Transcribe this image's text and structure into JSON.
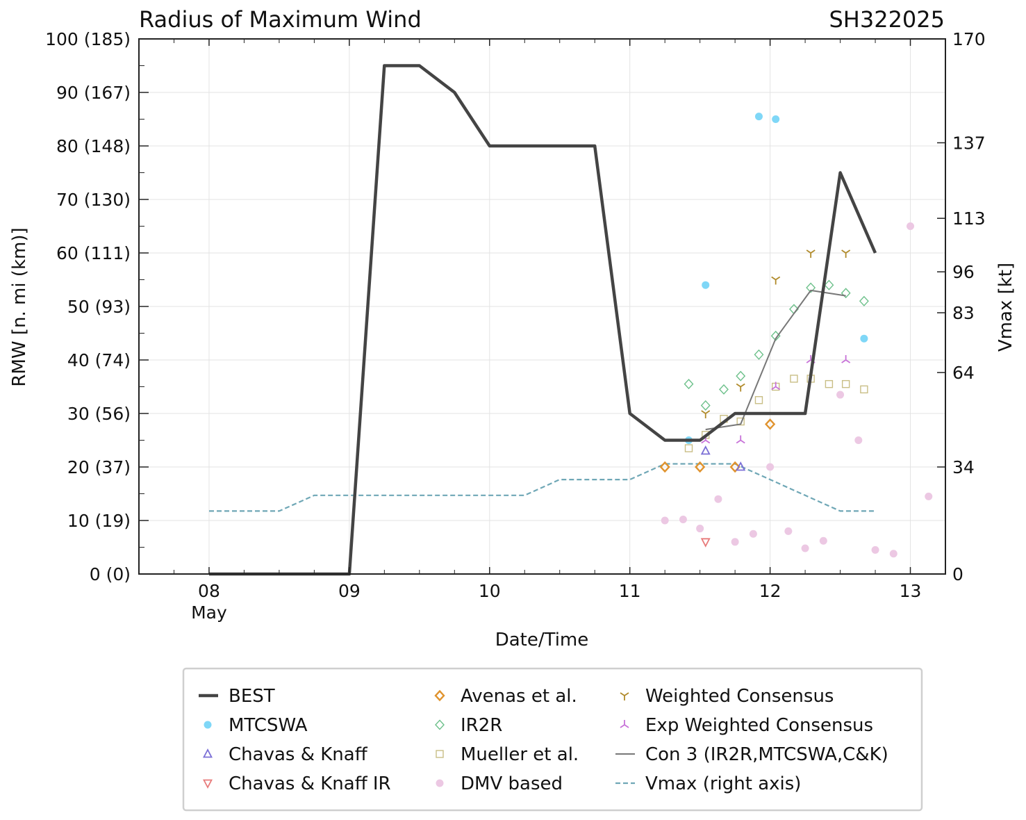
{
  "chart_data": {
    "type": "line",
    "title": "Radius of Maximum Wind",
    "storm_id": "SH322025",
    "xlabel": "Date/Time",
    "ylabel": "RMW [n. mi (km)]",
    "ylabel_right": "Vmax [kt]",
    "xlim": [
      7.5,
      13.25
    ],
    "ylim": [
      0,
      100
    ],
    "y_right_lim": [
      0,
      170
    ],
    "x_ticks": [
      {
        "value": 8,
        "label": "08",
        "sub": "May"
      },
      {
        "value": 9,
        "label": "09",
        "sub": ""
      },
      {
        "value": 10,
        "label": "10",
        "sub": ""
      },
      {
        "value": 11,
        "label": "11",
        "sub": ""
      },
      {
        "value": 12,
        "label": "12",
        "sub": ""
      },
      {
        "value": 13,
        "label": "13",
        "sub": ""
      }
    ],
    "y_ticks": [
      {
        "value": 0,
        "label": "0 (0)"
      },
      {
        "value": 10,
        "label": "10 (19)"
      },
      {
        "value": 20,
        "label": "20 (37)"
      },
      {
        "value": 30,
        "label": "30 (56)"
      },
      {
        "value": 40,
        "label": "40 (74)"
      },
      {
        "value": 50,
        "label": "50 (93)"
      },
      {
        "value": 60,
        "label": "60 (111)"
      },
      {
        "value": 70,
        "label": "70 (130)"
      },
      {
        "value": 80,
        "label": "80 (148)"
      },
      {
        "value": 90,
        "label": "90 (167)"
      },
      {
        "value": 100,
        "label": "100 (185)"
      }
    ],
    "y_right_ticks": [
      {
        "value": 0,
        "label": "0"
      },
      {
        "value": 34,
        "label": "34"
      },
      {
        "value": 64,
        "label": "64"
      },
      {
        "value": 83,
        "label": "83"
      },
      {
        "value": 96,
        "label": "96"
      },
      {
        "value": 113,
        "label": "113"
      },
      {
        "value": 137,
        "label": "137"
      },
      {
        "value": 170,
        "label": "170"
      }
    ],
    "series": [
      {
        "name": "BEST",
        "marker": "line",
        "color": "#444444",
        "axis": "left",
        "points": [
          [
            8.0,
            0
          ],
          [
            9.0,
            0
          ],
          [
            9.25,
            95
          ],
          [
            9.5,
            95
          ],
          [
            9.75,
            90
          ],
          [
            10.0,
            80
          ],
          [
            10.25,
            80
          ],
          [
            10.5,
            80
          ],
          [
            10.75,
            80
          ],
          [
            11.0,
            30
          ],
          [
            11.25,
            25
          ],
          [
            11.5,
            25
          ],
          [
            11.75,
            30
          ],
          [
            12.0,
            30
          ],
          [
            12.25,
            30
          ],
          [
            12.5,
            75
          ],
          [
            12.75,
            60
          ]
        ]
      },
      {
        "name": "MTCSWA",
        "marker": "circle",
        "color": "#7fd7f7",
        "axis": "left",
        "points": [
          [
            11.42,
            25
          ],
          [
            11.54,
            54
          ],
          [
            11.92,
            85.5
          ],
          [
            12.04,
            85
          ],
          [
            12.67,
            44
          ]
        ]
      },
      {
        "name": "Chavas & Knaff",
        "marker": "triangle-up",
        "color": "#7b6fd6",
        "axis": "left",
        "points": [
          [
            11.54,
            23
          ],
          [
            11.79,
            20
          ]
        ]
      },
      {
        "name": "Chavas & Knaff IR",
        "marker": "triangle-down",
        "color": "#e87b7b",
        "axis": "left",
        "points": [
          [
            11.54,
            6
          ]
        ]
      },
      {
        "name": "Avenas et al.",
        "marker": "diamond",
        "color": "#e0932e",
        "axis": "left",
        "points": [
          [
            11.25,
            20
          ],
          [
            11.5,
            20
          ],
          [
            11.75,
            20
          ],
          [
            12.0,
            28
          ]
        ]
      },
      {
        "name": "IR2R",
        "marker": "diamond-open",
        "color": "#6cc08a",
        "axis": "left",
        "points": [
          [
            11.42,
            35.5
          ],
          [
            11.54,
            31.5
          ],
          [
            11.67,
            34.5
          ],
          [
            11.79,
            37
          ],
          [
            11.92,
            41
          ],
          [
            12.04,
            44.5
          ],
          [
            12.17,
            49.5
          ],
          [
            12.29,
            53.5
          ],
          [
            12.42,
            54
          ],
          [
            12.54,
            52.5
          ],
          [
            12.67,
            51
          ]
        ]
      },
      {
        "name": "Mueller et al.",
        "marker": "square",
        "color": "#c9be85",
        "axis": "left",
        "points": [
          [
            11.42,
            23.5
          ],
          [
            11.54,
            26
          ],
          [
            11.67,
            29
          ],
          [
            11.79,
            28.5
          ],
          [
            11.92,
            32.5
          ],
          [
            12.04,
            35
          ],
          [
            12.17,
            36.5
          ],
          [
            12.29,
            36.5
          ],
          [
            12.42,
            35.5
          ],
          [
            12.54,
            35.5
          ],
          [
            12.67,
            34.5
          ]
        ]
      },
      {
        "name": "DMV based",
        "marker": "circle",
        "color": "#ecc8e3",
        "axis": "left",
        "points": [
          [
            11.25,
            10
          ],
          [
            11.38,
            10.2
          ],
          [
            11.5,
            8.5
          ],
          [
            11.63,
            14
          ],
          [
            11.75,
            6
          ],
          [
            11.88,
            7.5
          ],
          [
            12.0,
            20
          ],
          [
            12.13,
            8
          ],
          [
            12.25,
            4.8
          ],
          [
            12.38,
            6.2
          ],
          [
            12.5,
            33.5
          ],
          [
            12.63,
            25
          ],
          [
            12.75,
            4.5
          ],
          [
            12.88,
            3.8
          ],
          [
            13.0,
            65
          ],
          [
            13.13,
            14.5
          ]
        ]
      },
      {
        "name": "Weighted Consensus",
        "marker": "tri-down",
        "color": "#b08a2a",
        "axis": "left",
        "points": [
          [
            11.54,
            30
          ],
          [
            11.79,
            35
          ],
          [
            12.04,
            55
          ],
          [
            12.29,
            60
          ],
          [
            12.54,
            60
          ]
        ]
      },
      {
        "name": "Exp Weighted Consensus",
        "marker": "tri-up",
        "color": "#c772d8",
        "axis": "left",
        "points": [
          [
            11.54,
            25
          ],
          [
            11.79,
            25
          ],
          [
            12.04,
            35
          ],
          [
            12.29,
            40
          ],
          [
            12.54,
            40
          ]
        ]
      },
      {
        "name": "Con 3 (IR2R,MTCSWA,C&K)",
        "marker": "line-thin",
        "color": "#777777",
        "axis": "left",
        "points": [
          [
            11.54,
            27
          ],
          [
            11.79,
            28
          ],
          [
            12.04,
            44
          ],
          [
            12.29,
            53
          ],
          [
            12.54,
            52
          ]
        ]
      },
      {
        "name": "Vmax (right axis)",
        "marker": "dashed",
        "color": "#6fa7b6",
        "axis": "right",
        "points": [
          [
            8.0,
            20
          ],
          [
            8.5,
            20
          ],
          [
            8.75,
            25
          ],
          [
            9.0,
            25
          ],
          [
            9.25,
            25
          ],
          [
            9.5,
            25
          ],
          [
            9.75,
            25
          ],
          [
            10.0,
            25
          ],
          [
            10.25,
            25
          ],
          [
            10.5,
            30
          ],
          [
            10.75,
            30
          ],
          [
            11.0,
            30
          ],
          [
            11.25,
            35
          ],
          [
            11.5,
            35
          ],
          [
            11.75,
            35
          ],
          [
            12.0,
            30
          ],
          [
            12.25,
            25
          ],
          [
            12.5,
            20
          ],
          [
            12.75,
            20
          ]
        ]
      }
    ],
    "legend": {
      "placement": "bottom-center",
      "columns": [
        [
          "BEST",
          "MTCSWA",
          "Chavas & Knaff",
          "Chavas & Knaff IR"
        ],
        [
          "Avenas et al.",
          "IR2R",
          "Mueller et al.",
          "DMV based"
        ],
        [
          "Weighted Consensus",
          "Exp Weighted Consensus",
          "Con 3 (IR2R,MTCSWA,C&K)",
          "Vmax (right axis)"
        ]
      ]
    }
  }
}
